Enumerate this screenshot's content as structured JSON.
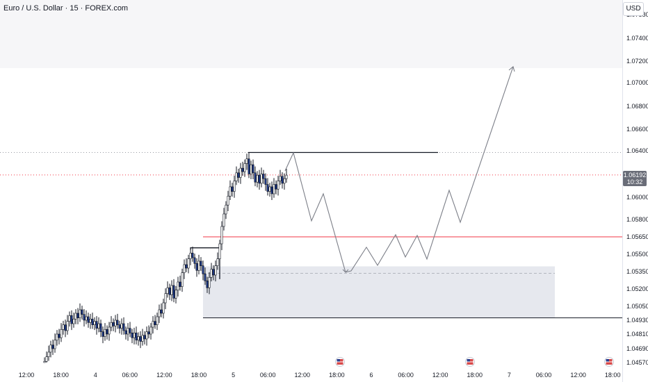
{
  "header": {
    "title": "Euro / U.S. Dollar · 15 · FOREX.com",
    "currency": "USD"
  },
  "price_tag": {
    "value": "1.06192",
    "countdown": "10:32"
  },
  "chart_data": {
    "type": "candlestick",
    "symbol": "EURUSD",
    "interval": "15",
    "broker": "FOREX.com",
    "last_price": 1.06192,
    "y_ticks": [
      "1.07580",
      "1.07400",
      "1.07200",
      "1.07000",
      "1.06800",
      "1.06600",
      "1.06400",
      "1.06000",
      "1.05800",
      "1.05650",
      "1.05500",
      "1.05350",
      "1.05200",
      "1.05050",
      "1.04930",
      "1.04810",
      "1.04690",
      "1.04570"
    ],
    "x_ticks": [
      "12:00",
      "18:00",
      "4",
      "06:00",
      "12:00",
      "18:00",
      "5",
      "06:00",
      "12:00",
      "18:00",
      "6",
      "06:00",
      "12:00",
      "18:00",
      "7",
      "06:00",
      "12:00",
      "18:00"
    ],
    "candles_close": [
      1.0458,
      1.0462,
      1.0466,
      1.0472,
      1.0469,
      1.0476,
      1.0481,
      1.0478,
      1.0485,
      1.0489,
      1.0484,
      1.0492,
      1.0497,
      1.049,
      1.0494,
      1.0499,
      1.0495,
      1.0502,
      1.0498,
      1.0493,
      1.0496,
      1.0491,
      1.0494,
      1.0489,
      1.0492,
      1.0486,
      1.049,
      1.0483,
      1.0479,
      1.0485,
      1.0481,
      1.0487,
      1.0491,
      1.0488,
      1.0493,
      1.0489,
      1.0486,
      1.049,
      1.0484,
      1.0481,
      1.0486,
      1.0482,
      1.0478,
      1.0482,
      1.0476,
      1.0479,
      1.0475,
      1.048,
      1.0477,
      1.0483,
      1.0481,
      1.0487,
      1.0492,
      1.0489,
      1.0496,
      1.0502,
      1.0499,
      1.0508,
      1.0516,
      1.0521,
      1.0515,
      1.0523,
      1.0512,
      1.0519,
      1.0526,
      1.0522,
      1.0534,
      1.0541,
      1.0538,
      1.0546,
      1.0551,
      1.0547,
      1.0542,
      1.0536,
      1.0544,
      1.054,
      1.0533,
      1.0527,
      1.0521,
      1.053,
      1.0537,
      1.0532,
      1.054,
      1.0546,
      1.0559,
      1.0574,
      1.0585,
      1.0593,
      1.0601,
      1.0609,
      1.0605,
      1.0614,
      1.0621,
      1.0617,
      1.0625,
      1.0622,
      1.0629,
      1.0633,
      1.062,
      1.0628,
      1.0621,
      1.0613,
      1.0619,
      1.0612,
      1.062,
      1.0616,
      1.0611,
      1.0605,
      1.0609,
      1.0603,
      1.0611,
      1.0607,
      1.0614,
      1.0618,
      1.0612,
      1.0616,
      1.0619
    ],
    "levels": [
      {
        "name": "previous high",
        "price": 1.06385
      },
      {
        "name": "current price",
        "price": 1.06192
      },
      {
        "name": "red level",
        "price": 1.0565
      },
      {
        "name": "structure break",
        "price": 1.05555
      },
      {
        "name": "zone top",
        "price": 1.05395
      },
      {
        "name": "zone mid",
        "price": 1.05335
      },
      {
        "name": "zone bottom",
        "price": 1.0495
      }
    ],
    "projection": "zigzag path down into demand zone then up above 1.07200",
    "colors": {
      "bull": "#ffffff",
      "bear": "#1e3a8a",
      "wick": "#131722",
      "red_level": "#f23645",
      "zone": "#e6e8ee",
      "projection": "#7b7e87"
    },
    "grid": false,
    "log_scale": false
  }
}
